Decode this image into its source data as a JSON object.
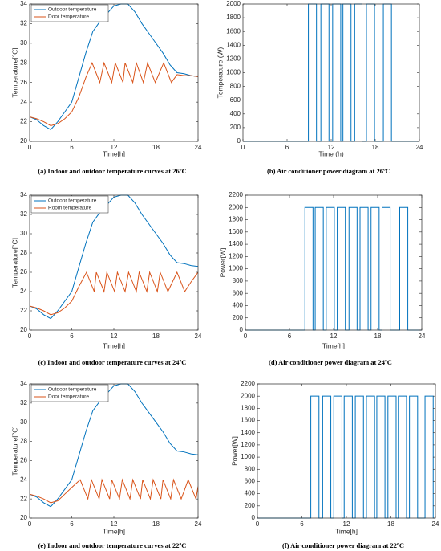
{
  "chart_data": [
    {
      "type": "line",
      "caption": "(a) Indoor and outdoor temperature curves at 26ºC",
      "xlabel": "Time[h]",
      "ylabel": "Temperature[℃]",
      "xlim": [
        0,
        24
      ],
      "xticks": [
        0,
        6,
        12,
        18,
        24
      ],
      "ylim": [
        20,
        34
      ],
      "yticks": [
        20,
        22,
        24,
        26,
        28,
        30,
        32,
        34
      ],
      "legend": "upper left",
      "series": [
        {
          "name": "Outdoor temperature",
          "color": "#0072bd",
          "x": [
            0,
            1,
            2,
            3,
            4,
            5,
            6,
            7,
            8,
            9,
            10,
            11,
            12,
            13,
            14,
            15,
            16,
            17,
            18,
            19,
            20,
            21,
            22,
            23,
            24
          ],
          "values": [
            22.5,
            22.2,
            21.6,
            21.2,
            22,
            23,
            24,
            26.5,
            29,
            31.2,
            32.2,
            33,
            33.8,
            34,
            34,
            33.2,
            32,
            31,
            30,
            29,
            27.8,
            27,
            26.9,
            26.7,
            26.6
          ]
        },
        {
          "name": "Door temperature",
          "color": "#d95319",
          "x": [
            0,
            1,
            2,
            3,
            4,
            5,
            6,
            7,
            8,
            8.9,
            10.0,
            10.6,
            11.7,
            12.2,
            13.3,
            13.6,
            14.7,
            15.2,
            16.2,
            16.8,
            17.9,
            19.1,
            20.2,
            21,
            22,
            23,
            24
          ],
          "values": [
            22.5,
            22.3,
            22,
            21.6,
            21.8,
            22.3,
            23,
            24.5,
            26.5,
            28,
            26,
            28,
            26,
            28,
            26,
            28,
            26,
            28,
            26,
            28,
            26,
            28,
            26,
            26.8,
            26.7,
            26.7,
            26.6
          ]
        }
      ]
    },
    {
      "type": "line",
      "caption": "(b) Air conditioner power diagram at 26ºC",
      "xlabel": "Time (h)",
      "ylabel": "Temperature (W)",
      "xlim": [
        0,
        24
      ],
      "xticks": [
        0,
        6,
        12,
        18,
        24
      ],
      "ylim": [
        0,
        2000
      ],
      "yticks": [
        0,
        200,
        400,
        600,
        800,
        1000,
        1200,
        1400,
        1600,
        1800,
        2000
      ],
      "series": [
        {
          "color": "#0072bd",
          "x": [
            0,
            8.9,
            8.9,
            10.0,
            10.0,
            10.6,
            10.6,
            11.7,
            11.7,
            12.2,
            12.2,
            13.3,
            13.3,
            13.6,
            13.6,
            14.7,
            14.7,
            15.2,
            15.2,
            16.2,
            16.2,
            16.8,
            16.8,
            17.9,
            17.9,
            19.1,
            19.1,
            20.2,
            20.2,
            24
          ],
          "values": [
            0,
            0,
            2000,
            2000,
            0,
            0,
            2000,
            2000,
            0,
            0,
            2000,
            2000,
            0,
            0,
            2000,
            2000,
            0,
            0,
            2000,
            2000,
            0,
            0,
            2000,
            2000,
            0,
            0,
            2000,
            2000,
            0,
            0
          ]
        }
      ]
    },
    {
      "type": "line",
      "caption": "(c) Indoor and outdoor temperature curves at 24ºC",
      "xlabel": "Time[h]",
      "ylabel": "Temperature[°C]",
      "xlim": [
        0,
        24
      ],
      "xticks": [
        0,
        6,
        12,
        18,
        24
      ],
      "ylim": [
        20,
        34
      ],
      "yticks": [
        20,
        22,
        24,
        26,
        28,
        30,
        32,
        34
      ],
      "legend": "upper left",
      "series": [
        {
          "name": "Outdoor temperature",
          "color": "#0072bd",
          "x": [
            0,
            1,
            2,
            3,
            4,
            5,
            6,
            7,
            8,
            9,
            10,
            11,
            12,
            13,
            14,
            15,
            16,
            17,
            18,
            19,
            20,
            21,
            22,
            23,
            24
          ],
          "values": [
            22.5,
            22.2,
            21.6,
            21.2,
            22,
            23,
            24,
            26.5,
            29,
            31.2,
            32.2,
            33,
            33.8,
            34,
            34,
            33.2,
            32,
            31,
            30,
            29,
            27.8,
            27,
            26.9,
            26.7,
            26.6
          ]
        },
        {
          "name": "Room temperature",
          "color": "#d95319",
          "x": [
            0,
            1,
            2,
            3,
            4,
            5,
            6,
            7,
            8.1,
            9.2,
            9.5,
            10.6,
            11.0,
            12.1,
            12.5,
            13.6,
            14.1,
            15.2,
            15.6,
            16.7,
            17.1,
            18.2,
            18.6,
            19.7,
            21.0,
            22.1,
            23,
            24
          ],
          "values": [
            22.5,
            22.3,
            22,
            21.6,
            21.8,
            22.3,
            23,
            24.5,
            26,
            24,
            26,
            24,
            26,
            24,
            26,
            24,
            26,
            24,
            26,
            24,
            26,
            24,
            26,
            24,
            26,
            24,
            25,
            26
          ]
        }
      ]
    },
    {
      "type": "line",
      "caption": "(d) Air conditioner power diagram at 24ºC",
      "xlabel": "Time[h]",
      "ylabel": "Power[W]",
      "xlim": [
        0,
        24
      ],
      "xticks": [
        0,
        6,
        12,
        18,
        24
      ],
      "ylim": [
        0,
        2200
      ],
      "yticks": [
        0,
        200,
        400,
        600,
        800,
        1000,
        1200,
        1400,
        1600,
        1800,
        2000,
        2200
      ],
      "series": [
        {
          "color": "#0072bd",
          "x": [
            0,
            8.1,
            8.1,
            9.2,
            9.2,
            9.5,
            9.5,
            10.6,
            10.6,
            11.0,
            11.0,
            12.1,
            12.1,
            12.5,
            12.5,
            13.6,
            13.6,
            14.1,
            14.1,
            15.2,
            15.2,
            15.6,
            15.6,
            16.7,
            16.7,
            17.1,
            17.1,
            18.2,
            18.2,
            18.6,
            18.6,
            19.7,
            19.7,
            21.0,
            21.0,
            22.1,
            22.1,
            24
          ],
          "values": [
            0,
            0,
            2000,
            2000,
            0,
            0,
            2000,
            2000,
            0,
            0,
            2000,
            2000,
            0,
            0,
            2000,
            2000,
            0,
            0,
            2000,
            2000,
            0,
            0,
            2000,
            2000,
            0,
            0,
            2000,
            2000,
            0,
            0,
            2000,
            2000,
            0,
            0,
            2000,
            2000,
            0,
            0
          ]
        }
      ]
    },
    {
      "type": "line",
      "caption": "(e) Indoor and outdoor temperature curves at 22ºC",
      "xlabel": "Time[h]",
      "ylabel": "Temperature[℃]",
      "xlim": [
        0,
        24
      ],
      "xticks": [
        0,
        6,
        12,
        18,
        24
      ],
      "ylim": [
        20,
        34
      ],
      "yticks": [
        20,
        22,
        24,
        26,
        28,
        30,
        32,
        34
      ],
      "legend": "upper left",
      "series": [
        {
          "name": "Outdoor temperature",
          "color": "#0072bd",
          "x": [
            0,
            1,
            2,
            3,
            4,
            5,
            6,
            7,
            8,
            9,
            10,
            11,
            12,
            13,
            14,
            15,
            16,
            17,
            18,
            19,
            20,
            21,
            22,
            23,
            24
          ],
          "values": [
            22.5,
            22.2,
            21.6,
            21.2,
            22,
            23,
            24,
            26.5,
            29,
            31.2,
            32.2,
            33,
            33.8,
            34,
            34,
            33.2,
            32,
            31,
            30,
            29,
            27.8,
            27,
            26.9,
            26.7,
            26.6
          ]
        },
        {
          "name": "Door temperature",
          "color": "#d95319",
          "x": [
            0,
            1,
            2,
            3,
            4,
            5,
            6,
            7.2,
            8.3,
            8.8,
            9.9,
            10.3,
            11.4,
            11.7,
            12.8,
            13.2,
            14.3,
            14.7,
            15.8,
            16.1,
            17.2,
            17.6,
            18.7,
            19.0,
            20.1,
            20.5,
            21.6,
            22.6,
            23.7,
            24
          ],
          "values": [
            22.5,
            22.3,
            22,
            21.6,
            21.8,
            22.5,
            23.2,
            24,
            22,
            24,
            22,
            24,
            22,
            24,
            22,
            24,
            22,
            24,
            22,
            24,
            22,
            24,
            22,
            24,
            22,
            24,
            22,
            24,
            22,
            23.3
          ]
        }
      ]
    },
    {
      "type": "line",
      "caption": "(f) Air conditioner power diagram at 22ºC",
      "xlabel": "Time[h]",
      "ylabel": "Power[W]",
      "xlim": [
        0,
        24
      ],
      "xticks": [
        0,
        6,
        12,
        18,
        24
      ],
      "ylim": [
        0,
        2200
      ],
      "yticks": [
        0,
        200,
        400,
        600,
        800,
        1000,
        1200,
        1400,
        1600,
        1800,
        2000,
        2200
      ],
      "series": [
        {
          "color": "#0072bd",
          "x": [
            0,
            7.2,
            7.2,
            8.3,
            8.3,
            8.8,
            8.8,
            9.9,
            9.9,
            10.3,
            10.3,
            11.4,
            11.4,
            11.7,
            11.7,
            12.8,
            12.8,
            13.2,
            13.2,
            14.3,
            14.3,
            14.7,
            14.7,
            15.8,
            15.8,
            16.1,
            16.1,
            17.2,
            17.2,
            17.6,
            17.6,
            18.7,
            18.7,
            19.0,
            19.0,
            20.1,
            20.1,
            20.5,
            20.5,
            21.6,
            21.6,
            22.6,
            22.6,
            23.7,
            23.7,
            24
          ],
          "values": [
            0,
            0,
            2000,
            2000,
            0,
            0,
            2000,
            2000,
            0,
            0,
            2000,
            2000,
            0,
            0,
            2000,
            2000,
            0,
            0,
            2000,
            2000,
            0,
            0,
            2000,
            2000,
            0,
            0,
            2000,
            2000,
            0,
            0,
            2000,
            2000,
            0,
            0,
            2000,
            2000,
            0,
            0,
            2000,
            2000,
            0,
            0,
            2000,
            2000,
            0,
            0
          ]
        }
      ]
    }
  ]
}
